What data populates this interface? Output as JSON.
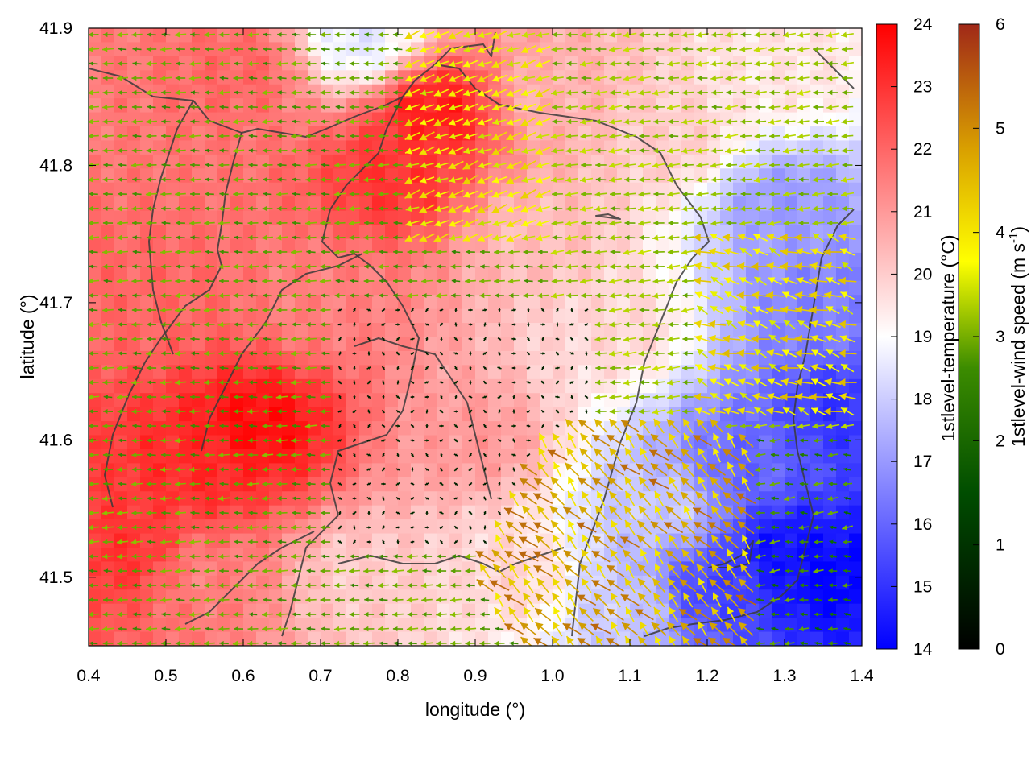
{
  "chart_data": {
    "type": "heatmap",
    "title": "",
    "xlabel": "longitude (°)",
    "ylabel": "latitude (°)",
    "xlim": [
      0.4,
      1.4
    ],
    "ylim": [
      41.45,
      41.9
    ],
    "x_ticks": [
      "0.4",
      "0.5",
      "0.6",
      "0.7",
      "0.8",
      "0.9",
      "1.0",
      "1.1",
      "1.2",
      "1.3",
      "1.4"
    ],
    "y_ticks": [
      "41.5",
      "41.6",
      "41.7",
      "41.8",
      "41.9"
    ],
    "grid": false,
    "layers": [
      {
        "type": "heatmap",
        "name": "1stlevel-temperature",
        "colorbar_label": "1stlevel-temperature (°C)",
        "range": [
          14,
          24
        ],
        "colorbar_ticks": [
          "14",
          "15",
          "16",
          "17",
          "18",
          "19",
          "20",
          "21",
          "22",
          "23",
          "24"
        ],
        "colormap": [
          "#0000ff",
          "#ffffff",
          "#ff0000"
        ],
        "hotspots": [
          {
            "lon": 0.45,
            "lat": 41.52,
            "temp": 23.0
          },
          {
            "lon": 0.48,
            "lat": 41.7,
            "temp": 22.0
          },
          {
            "lon": 0.55,
            "lat": 41.58,
            "temp": 23.2
          },
          {
            "lon": 0.62,
            "lat": 41.61,
            "temp": 23.8
          },
          {
            "lon": 0.6,
            "lat": 41.87,
            "temp": 22.0
          },
          {
            "lon": 0.8,
            "lat": 41.79,
            "temp": 23.0
          },
          {
            "lon": 0.85,
            "lat": 41.84,
            "temp": 23.5
          },
          {
            "lon": 0.7,
            "lat": 41.7,
            "temp": 21.5
          },
          {
            "lon": 0.9,
            "lat": 41.6,
            "temp": 21.0
          },
          {
            "lon": 1.0,
            "lat": 41.85,
            "temp": 20.5
          },
          {
            "lon": 1.15,
            "lat": 41.82,
            "temp": 20.0
          },
          {
            "lon": 1.3,
            "lat": 41.87,
            "temp": 19.5
          },
          {
            "lon": 0.98,
            "lat": 41.75,
            "temp": 20.3
          },
          {
            "lon": 1.08,
            "lat": 41.68,
            "temp": 19.8
          },
          {
            "lon": 1.3,
            "lat": 41.52,
            "temp": 14.3
          },
          {
            "lon": 1.36,
            "lat": 41.5,
            "temp": 14.0
          },
          {
            "lon": 1.2,
            "lat": 41.49,
            "temp": 15.3
          },
          {
            "lon": 1.25,
            "lat": 41.58,
            "temp": 16.0
          },
          {
            "lon": 1.35,
            "lat": 41.7,
            "temp": 16.5
          },
          {
            "lon": 1.3,
            "lat": 41.77,
            "temp": 17.0
          },
          {
            "lon": 1.38,
            "lat": 41.62,
            "temp": 15.0
          },
          {
            "lon": 1.15,
            "lat": 41.55,
            "temp": 18.0
          },
          {
            "lon": 1.1,
            "lat": 41.48,
            "temp": 18.0
          },
          {
            "lon": 0.75,
            "lat": 41.89,
            "temp": 18.5
          },
          {
            "lon": 0.55,
            "lat": 41.5,
            "temp": 21.5
          },
          {
            "lon": 0.75,
            "lat": 41.5,
            "temp": 20.0
          },
          {
            "lon": 0.95,
            "lat": 41.5,
            "temp": 19.8
          }
        ]
      },
      {
        "type": "vector",
        "name": "1stlevel-wind",
        "colorbar_label": "1stlevel-wind speed (m s-1)",
        "colorbar_label_base": "1stlevel-wind speed (m s",
        "colorbar_label_exp": "-1",
        "colorbar_label_close": ")",
        "range": [
          0,
          6
        ],
        "colorbar_ticks": [
          "0",
          "1",
          "2",
          "3",
          "4",
          "5",
          "6"
        ],
        "colormap": [
          "#000000",
          "#006400",
          "#7fb800",
          "#ffff00",
          "#d2a000",
          "#a02818"
        ],
        "regimes": [
          {
            "region": "west / northwest",
            "direction": "toward west",
            "speed_ms": 2.2
          },
          {
            "region": "north-central",
            "direction": "toward west-southwest",
            "speed_ms": 3.8
          },
          {
            "region": "northeast",
            "direction": "toward west",
            "speed_ms": 2.6
          },
          {
            "region": "central",
            "direction": "calm",
            "speed_ms": 0.3
          },
          {
            "region": "southeast coast",
            "direction": "toward northwest",
            "speed_ms": 4.8
          },
          {
            "region": "far southeast",
            "direction": "toward west",
            "speed_ms": 1.8
          }
        ]
      }
    ],
    "contour_lines": "dark gray coastline / region boundary contours"
  }
}
